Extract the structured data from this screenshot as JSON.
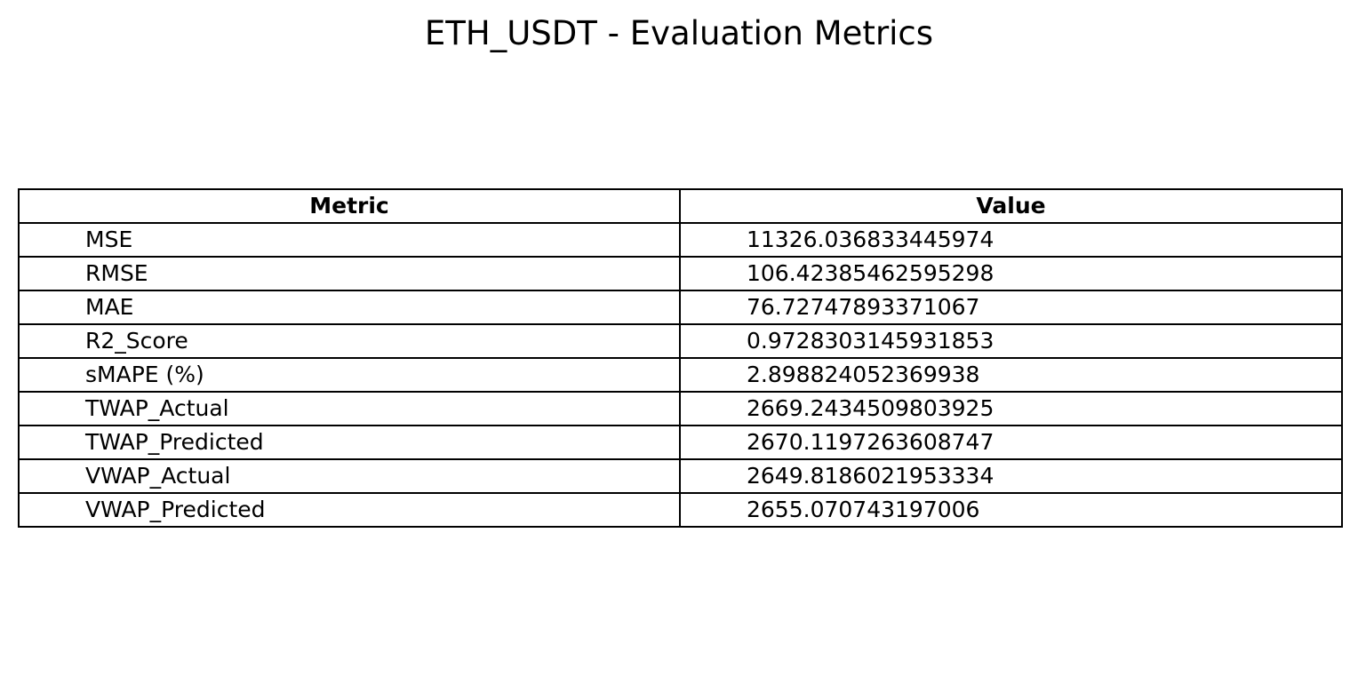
{
  "chart_data": {
    "type": "table",
    "title": "ETH_USDT - Evaluation Metrics",
    "columns": [
      "Metric",
      "Value"
    ],
    "rows": [
      [
        "MSE",
        "11326.036833445974"
      ],
      [
        "RMSE",
        "106.42385462595298"
      ],
      [
        "MAE",
        "76.72747893371067"
      ],
      [
        "R2_Score",
        "0.9728303145931853"
      ],
      [
        "sMAPE (%)",
        "2.898824052369938"
      ],
      [
        "TWAP_Actual",
        "2669.2434509803925"
      ],
      [
        "TWAP_Predicted",
        "2670.1197263608747"
      ],
      [
        "VWAP_Actual",
        "2649.8186021953334"
      ],
      [
        "VWAP_Predicted",
        "2655.070743197006"
      ]
    ],
    "colors": {
      "border": "#000000",
      "background": "#ffffff",
      "text": "#000000"
    }
  }
}
